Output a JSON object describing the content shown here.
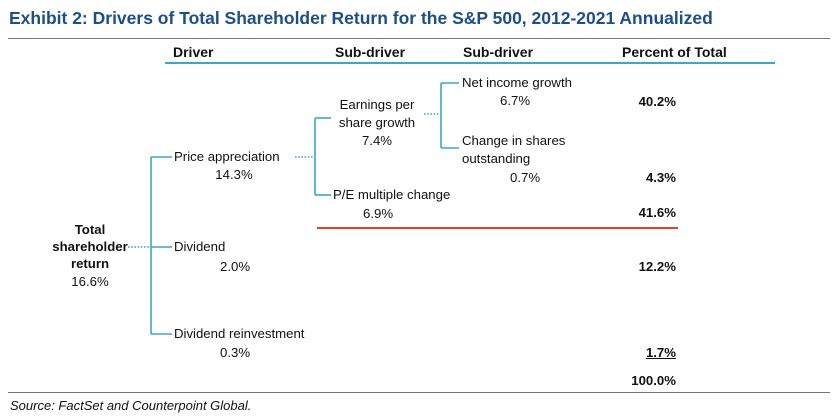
{
  "title": "Exhibit 2: Drivers of Total Shareholder Return for the S&P 500, 2012-2021 Annualized",
  "headers": {
    "driver": "Driver",
    "sub_driver_1": "Sub-driver",
    "sub_driver_2": "Sub-driver",
    "percent": "Percent of Total"
  },
  "root": {
    "label_line1": "Total",
    "label_line2": "shareholder",
    "label_line3": "return",
    "value": "16.6%"
  },
  "drivers": [
    {
      "label": "Price appreciation",
      "value": "14.3%"
    },
    {
      "label": "Dividend",
      "value": "2.0%"
    },
    {
      "label": "Dividend reinvestment",
      "value": "0.3%"
    }
  ],
  "sub_drivers_1": [
    {
      "label_line1": "Earnings per",
      "label_line2": "share growth",
      "value": "7.4%"
    },
    {
      "label": "P/E multiple change",
      "value": "6.9%"
    }
  ],
  "sub_drivers_2": [
    {
      "label": "Net income growth",
      "value": "6.7%"
    },
    {
      "label_line1": "Change in shares",
      "label_line2": "outstanding",
      "value": "0.7%"
    }
  ],
  "percents": {
    "net_income_growth": "40.2%",
    "change_in_shares": "4.3%",
    "pe_multiple": "41.6%",
    "dividend": "12.2%",
    "dividend_reinvestment": "1.7%",
    "total": "100.0%"
  },
  "source": "Source: FactSet and Counterpoint Global.",
  "colors": {
    "title": "#1c4f8a",
    "connector": "#3aa6c8",
    "red_rule": "#e2412a"
  }
}
